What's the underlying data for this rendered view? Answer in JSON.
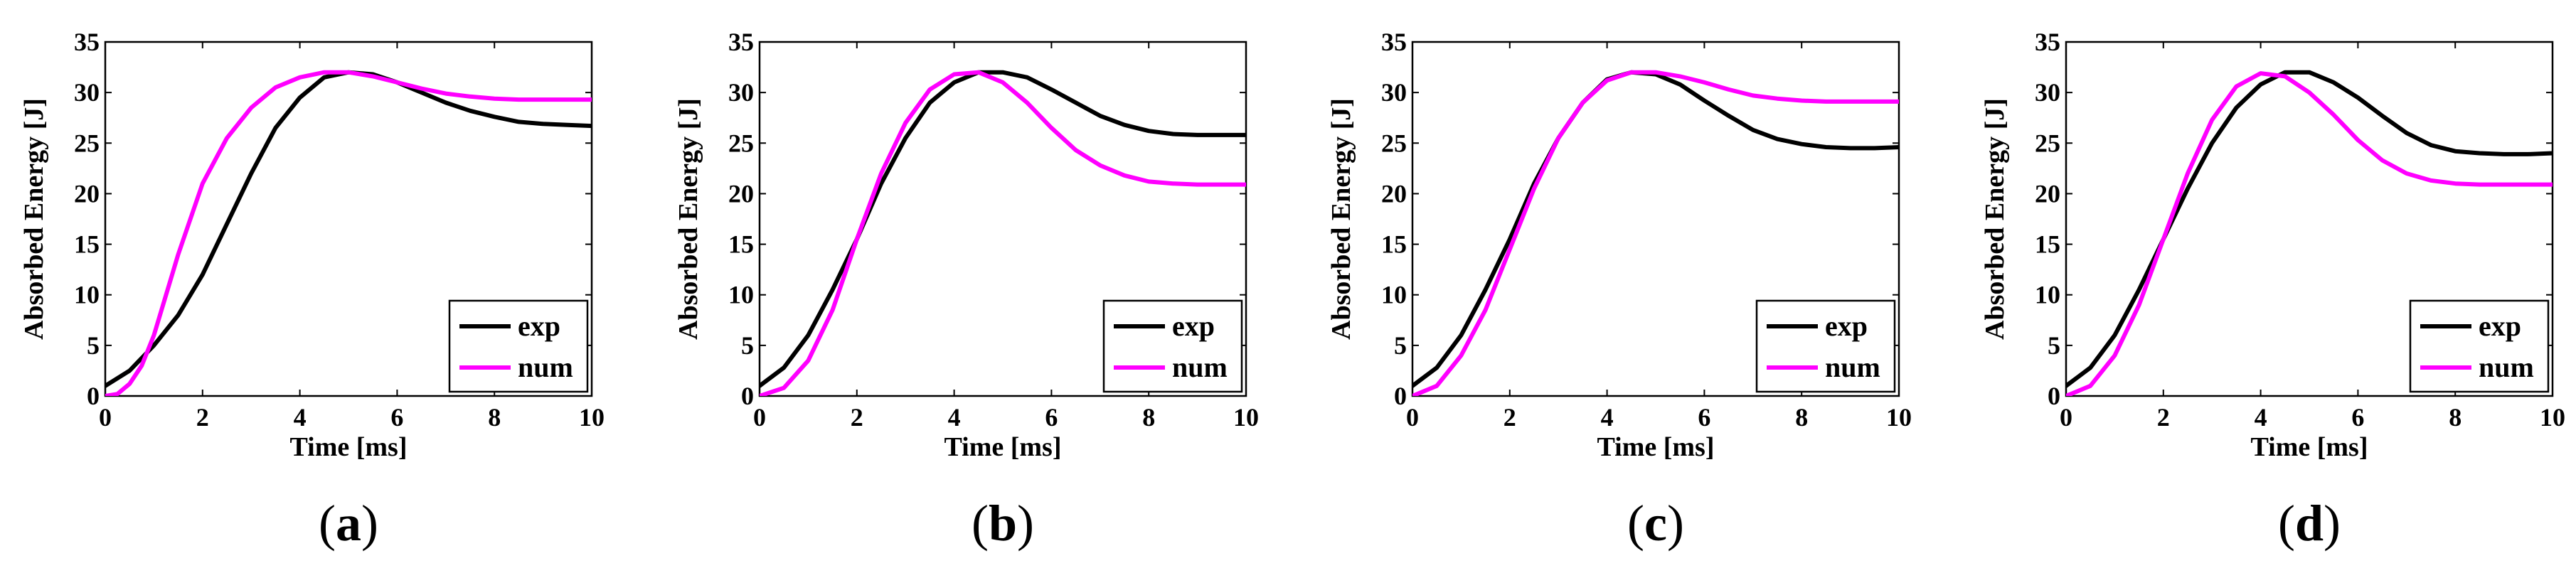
{
  "colors": {
    "exp": "#000000",
    "num": "#ff00ff",
    "axis": "#000000",
    "background": "#ffffff"
  },
  "chart_data": [
    {
      "type": "line",
      "panel_label": {
        "open": "(",
        "letter": "a",
        "close": ")"
      },
      "xlabel": "Time [ms]",
      "ylabel": "Absorbed Energy [J]",
      "xlim": [
        0,
        10
      ],
      "ylim": [
        0,
        35
      ],
      "xticks": [
        0,
        2,
        4,
        6,
        8,
        10
      ],
      "yticks": [
        0,
        5,
        10,
        15,
        20,
        25,
        30,
        35
      ],
      "legend": {
        "placement": "bottom-right",
        "entries": [
          "exp",
          "num"
        ]
      },
      "series": [
        {
          "name": "exp",
          "x": [
            0,
            0.5,
            1,
            1.5,
            2,
            2.5,
            3,
            3.5,
            4,
            4.5,
            5,
            5.5,
            6,
            6.5,
            7,
            7.5,
            8,
            8.5,
            9,
            9.5,
            10
          ],
          "y": [
            1,
            2.5,
            5,
            8,
            12,
            17,
            22,
            26.5,
            29.5,
            31.5,
            32,
            31.8,
            31,
            30,
            29,
            28.2,
            27.6,
            27.1,
            26.9,
            26.8,
            26.7
          ]
        },
        {
          "name": "num",
          "x": [
            0,
            0.25,
            0.5,
            0.75,
            1,
            1.25,
            1.5,
            2,
            2.5,
            3,
            3.5,
            4,
            4.5,
            5,
            5.5,
            6,
            6.5,
            7,
            7.5,
            8,
            8.5,
            9,
            9.5,
            10
          ],
          "y": [
            0,
            0.2,
            1.2,
            3,
            6,
            10,
            14,
            21,
            25.5,
            28.5,
            30.5,
            31.5,
            32,
            32,
            31.6,
            31,
            30.4,
            29.9,
            29.6,
            29.4,
            29.3,
            29.3,
            29.3,
            29.3
          ]
        }
      ]
    },
    {
      "type": "line",
      "panel_label": {
        "open": "(",
        "letter": "b",
        "close": ")"
      },
      "xlabel": "Time [ms]",
      "ylabel": "Absorbed Energy [J]",
      "xlim": [
        0,
        10
      ],
      "ylim": [
        0,
        35
      ],
      "xticks": [
        0,
        2,
        4,
        6,
        8,
        10
      ],
      "yticks": [
        0,
        5,
        10,
        15,
        20,
        25,
        30,
        35
      ],
      "legend": {
        "placement": "bottom-right",
        "entries": [
          "exp",
          "num"
        ]
      },
      "series": [
        {
          "name": "exp",
          "x": [
            0,
            0.5,
            1,
            1.5,
            2,
            2.5,
            3,
            3.5,
            4,
            4.5,
            5,
            5.5,
            6,
            6.5,
            7,
            7.5,
            8,
            8.5,
            9,
            9.5,
            10
          ],
          "y": [
            1,
            2.8,
            6,
            10.5,
            15.5,
            21,
            25.5,
            29,
            31,
            32,
            32,
            31.5,
            30.3,
            29,
            27.7,
            26.8,
            26.2,
            25.9,
            25.8,
            25.8,
            25.8
          ]
        },
        {
          "name": "num",
          "x": [
            0,
            0.5,
            1,
            1.5,
            2,
            2.5,
            3,
            3.5,
            4,
            4.5,
            5,
            5.5,
            6,
            6.5,
            7,
            7.5,
            8,
            8.5,
            9,
            9.5,
            10
          ],
          "y": [
            0,
            0.8,
            3.5,
            8.5,
            15.5,
            22,
            27,
            30.3,
            31.8,
            32,
            31,
            29,
            26.5,
            24.3,
            22.8,
            21.8,
            21.2,
            21,
            20.9,
            20.9,
            20.9
          ]
        }
      ]
    },
    {
      "type": "line",
      "panel_label": {
        "open": "(",
        "letter": "c",
        "close": ")"
      },
      "xlabel": "Time [ms]",
      "ylabel": "Absorbed Energy [J]",
      "xlim": [
        0,
        10
      ],
      "ylim": [
        0,
        35
      ],
      "xticks": [
        0,
        2,
        4,
        6,
        8,
        10
      ],
      "yticks": [
        0,
        5,
        10,
        15,
        20,
        25,
        30,
        35
      ],
      "legend": {
        "placement": "bottom-right",
        "entries": [
          "exp",
          "num"
        ]
      },
      "series": [
        {
          "name": "exp",
          "x": [
            0,
            0.5,
            1,
            1.5,
            2,
            2.5,
            3,
            3.5,
            4,
            4.5,
            5,
            5.5,
            6,
            6.5,
            7,
            7.5,
            8,
            8.5,
            9,
            9.5,
            10
          ],
          "y": [
            1,
            2.8,
            6,
            10.5,
            15.5,
            21,
            25.5,
            29,
            31.3,
            32,
            31.8,
            30.8,
            29.2,
            27.7,
            26.3,
            25.4,
            24.9,
            24.6,
            24.5,
            24.5,
            24.6
          ]
        },
        {
          "name": "num",
          "x": [
            0,
            0.5,
            1,
            1.5,
            2,
            2.5,
            3,
            3.5,
            4,
            4.5,
            5,
            5.5,
            6,
            6.5,
            7,
            7.5,
            8,
            8.5,
            9,
            9.5,
            10
          ],
          "y": [
            0,
            1,
            4,
            8.5,
            14.5,
            20.5,
            25.5,
            29,
            31.2,
            32,
            32,
            31.6,
            31,
            30.3,
            29.7,
            29.4,
            29.2,
            29.1,
            29.1,
            29.1,
            29.1
          ]
        }
      ]
    },
    {
      "type": "line",
      "panel_label": {
        "open": "(",
        "letter": "d",
        "close": ")"
      },
      "xlabel": "Time [ms]",
      "ylabel": "Absorbed Energy [J]",
      "xlim": [
        0,
        10
      ],
      "ylim": [
        0,
        35
      ],
      "xticks": [
        0,
        2,
        4,
        6,
        8,
        10
      ],
      "yticks": [
        0,
        5,
        10,
        15,
        20,
        25,
        30,
        35
      ],
      "legend": {
        "placement": "bottom-right",
        "entries": [
          "exp",
          "num"
        ]
      },
      "series": [
        {
          "name": "exp",
          "x": [
            0,
            0.5,
            1,
            1.5,
            2,
            2.5,
            3,
            3.5,
            4,
            4.5,
            5,
            5.5,
            6,
            6.5,
            7,
            7.5,
            8,
            8.5,
            9,
            9.5,
            10
          ],
          "y": [
            1,
            2.8,
            6,
            10.5,
            15.5,
            20.5,
            25,
            28.5,
            30.8,
            32,
            32,
            31,
            29.5,
            27.7,
            26,
            24.8,
            24.2,
            24,
            23.9,
            23.9,
            24
          ]
        },
        {
          "name": "num",
          "x": [
            0,
            0.5,
            1,
            1.5,
            2,
            2.5,
            3,
            3.5,
            4,
            4.5,
            5,
            5.5,
            6,
            6.5,
            7,
            7.5,
            8,
            8.5,
            9,
            9.5,
            10
          ],
          "y": [
            0,
            1,
            4,
            9,
            15.5,
            22,
            27.3,
            30.6,
            31.9,
            31.6,
            30,
            27.8,
            25.3,
            23.3,
            22,
            21.3,
            21,
            20.9,
            20.9,
            20.9,
            20.9
          ]
        }
      ]
    }
  ]
}
